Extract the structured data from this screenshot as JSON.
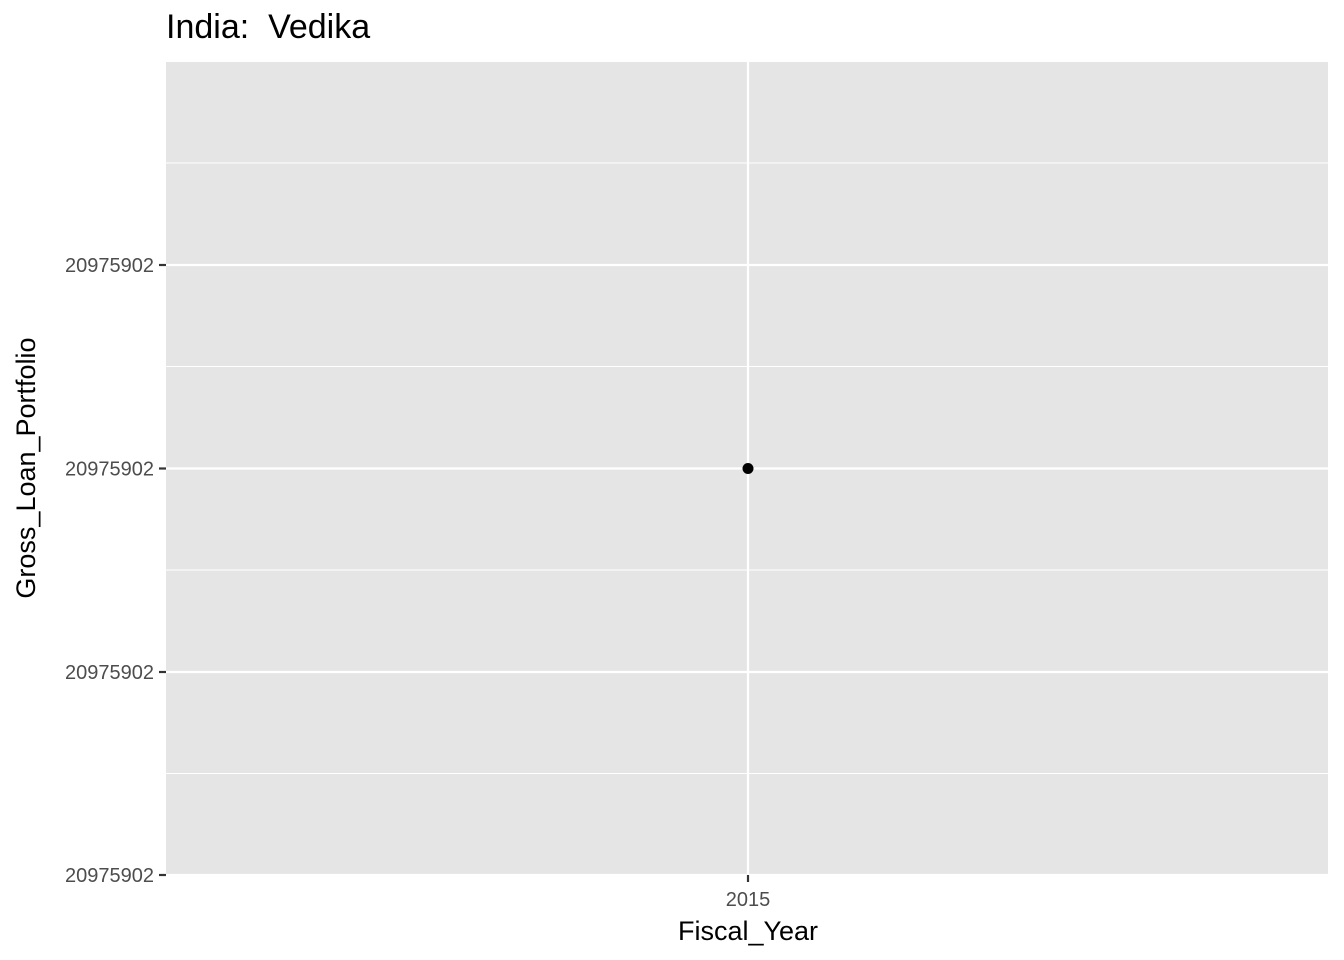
{
  "chart_data": {
    "type": "scatter",
    "title": "India:  Vedika",
    "xlabel": "Fiscal_Year",
    "ylabel": "Gross_Loan_Portfolio",
    "x_ticks": [
      "2015"
    ],
    "y_ticks": [
      "20975902",
      "20975902",
      "20975902",
      "20975902"
    ],
    "points": [
      {
        "x": 2015,
        "y": 20975902
      }
    ],
    "grid": true,
    "legend": "none",
    "colors": {
      "panel": "#e5e5e5",
      "grid": "#ffffff",
      "point": "#000000",
      "tick_text": "#4d4d4d"
    }
  }
}
